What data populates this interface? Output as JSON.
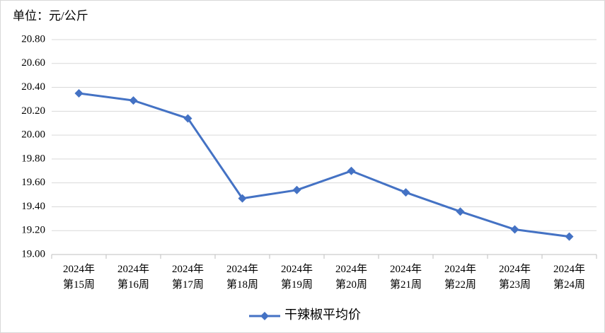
{
  "chart_data": {
    "type": "line",
    "title": "单位：元/公斤",
    "categories": [
      "2024年\n第15周",
      "2024年\n第16周",
      "2024年\n第17周",
      "2024年\n第18周",
      "2024年\n第19周",
      "2024年\n第20周",
      "2024年\n第21周",
      "2024年\n第22周",
      "2024年\n第23周",
      "2024年\n第24周"
    ],
    "series": [
      {
        "name": "干辣椒平均价",
        "color": "#4472c4",
        "values": [
          20.35,
          20.29,
          20.14,
          19.47,
          19.54,
          19.7,
          19.52,
          19.36,
          19.21,
          19.15
        ]
      }
    ],
    "ylim": [
      19.0,
      20.8
    ],
    "yticks": [
      {
        "value": 19.0,
        "label": "19.00"
      },
      {
        "value": 19.2,
        "label": "19.20"
      },
      {
        "value": 19.4,
        "label": "19.40"
      },
      {
        "value": 19.6,
        "label": "19.60"
      },
      {
        "value": 19.8,
        "label": "19.80"
      },
      {
        "value": 20.0,
        "label": "20.00"
      },
      {
        "value": 20.2,
        "label": "20.20"
      },
      {
        "value": 20.4,
        "label": "20.40"
      },
      {
        "value": 20.6,
        "label": "20.60"
      },
      {
        "value": 20.8,
        "label": "20.80"
      }
    ],
    "grid": true,
    "legend": "bottom"
  }
}
